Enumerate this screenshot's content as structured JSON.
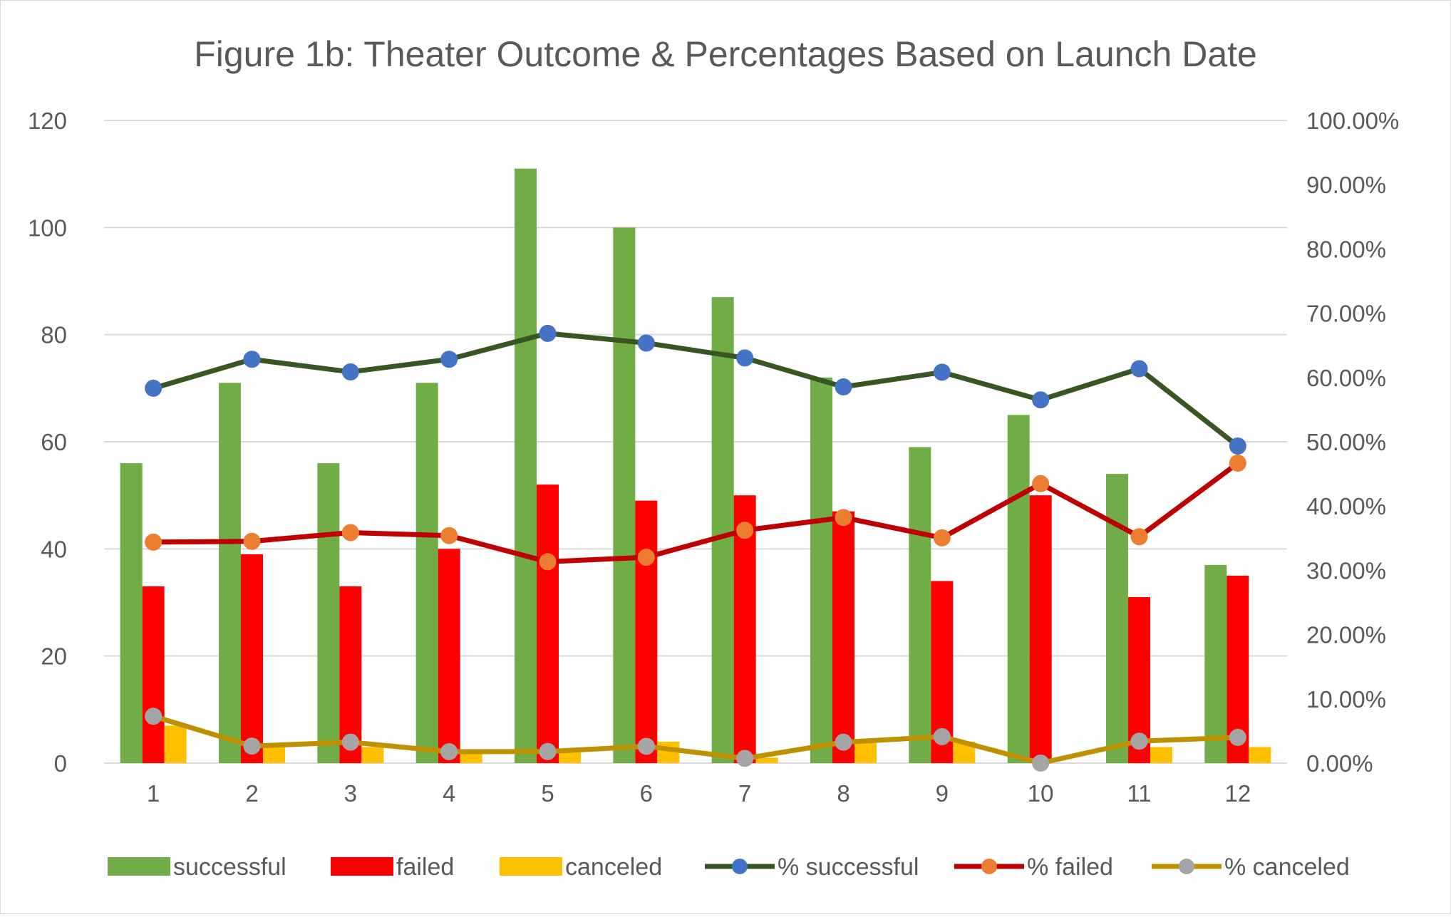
{
  "chart_data": {
    "type": "bar",
    "title": "Figure 1b: Theater Outcome & Percentages Based on Launch Date",
    "xlabel": "",
    "ylabel": "",
    "ylabel_right": "",
    "categories": [
      "1",
      "2",
      "3",
      "4",
      "5",
      "6",
      "7",
      "8",
      "9",
      "10",
      "11",
      "12"
    ],
    "ylim": [
      0,
      120
    ],
    "y_ticks": [
      "0",
      "20",
      "40",
      "60",
      "80",
      "100",
      "120"
    ],
    "y2lim": [
      0,
      1
    ],
    "y2_ticks": [
      "0.00%",
      "10.00%",
      "20.00%",
      "30.00%",
      "40.00%",
      "50.00%",
      "60.00%",
      "70.00%",
      "80.00%",
      "90.00%",
      "100.00%"
    ],
    "grid": true,
    "legend_position": "bottom",
    "series": [
      {
        "name": "successful",
        "kind": "bar",
        "axis": "left",
        "color": "#70ad47",
        "values": [
          56,
          71,
          56,
          71,
          111,
          100,
          87,
          72,
          59,
          65,
          54,
          37
        ]
      },
      {
        "name": "failed",
        "kind": "bar",
        "axis": "left",
        "color": "#ff0000",
        "values": [
          33,
          39,
          33,
          40,
          52,
          49,
          50,
          47,
          34,
          50,
          31,
          35
        ]
      },
      {
        "name": "canceled",
        "kind": "bar",
        "axis": "left",
        "color": "#ffc000",
        "values": [
          7,
          3,
          3,
          2,
          2,
          4,
          1,
          4,
          4,
          0,
          3,
          3
        ]
      },
      {
        "name": "% successful",
        "kind": "line",
        "axis": "right",
        "color": "#375623",
        "marker_color": "#4472c4",
        "values": [
          0.5833,
          0.6283,
          0.6087,
          0.6283,
          0.6687,
          0.6536,
          0.6304,
          0.5854,
          0.6082,
          0.5652,
          0.6136,
          0.4933
        ]
      },
      {
        "name": "% failed",
        "kind": "line",
        "axis": "right",
        "color": "#c00000",
        "marker_color": "#ed7d31",
        "values": [
          0.3438,
          0.3451,
          0.3587,
          0.354,
          0.3133,
          0.3203,
          0.3623,
          0.3821,
          0.3505,
          0.4348,
          0.3523,
          0.4667
        ]
      },
      {
        "name": "% canceled",
        "kind": "line",
        "axis": "right",
        "color": "#bf9000",
        "marker_color": "#a5a5a5",
        "values": [
          0.0729,
          0.0265,
          0.0326,
          0.0177,
          0.018,
          0.0261,
          0.0073,
          0.0325,
          0.0412,
          0.0,
          0.0341,
          0.04
        ]
      }
    ]
  }
}
